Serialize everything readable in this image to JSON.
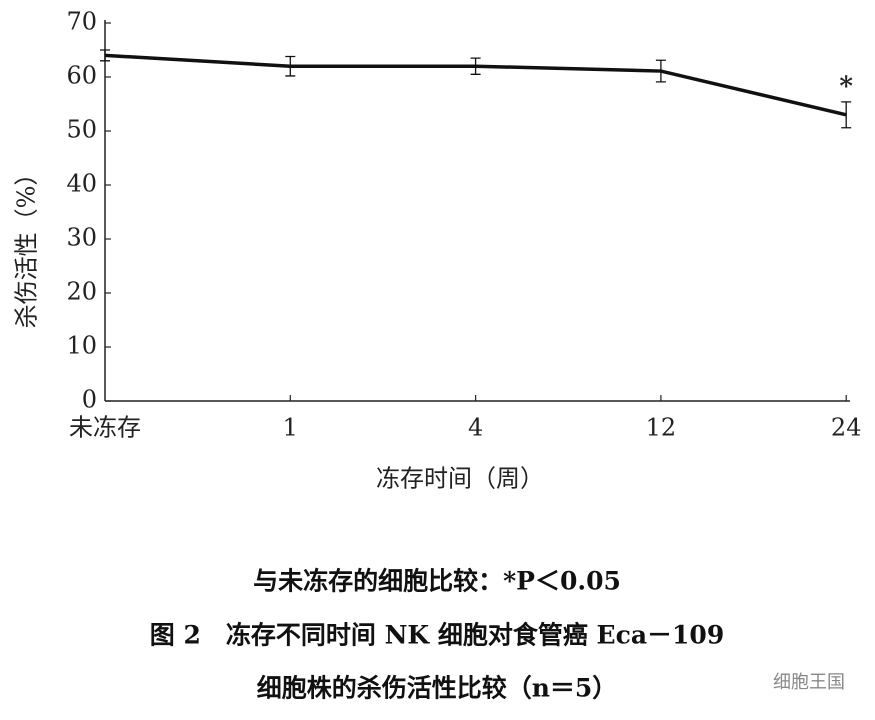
{
  "chart_data": {
    "type": "line",
    "y_label": "杀伤活性（%）",
    "x_label": "冻存时间（周）",
    "categories": [
      "未冻存",
      "1",
      "4",
      "12",
      "24"
    ],
    "values": [
      64,
      62,
      62,
      61.1,
      53
    ],
    "error": [
      1,
      1.8,
      1.5,
      2,
      2.4
    ],
    "color": "#111111",
    "annotations": [
      {
        "category": 4,
        "text": "*"
      }
    ],
    "ylim": [
      0,
      70
    ],
    "yticks": [
      0,
      10,
      20,
      30,
      40,
      50,
      60,
      70
    ],
    "notes": [
      "与未冻存的细胞比较：*P＜0.05",
      "图 2　冻存不同时间 NK 细胞对食管癌 Eca－109",
      "细胞株的杀伤活性比较（n＝5）"
    ],
    "watermark": "细胞王国"
  }
}
